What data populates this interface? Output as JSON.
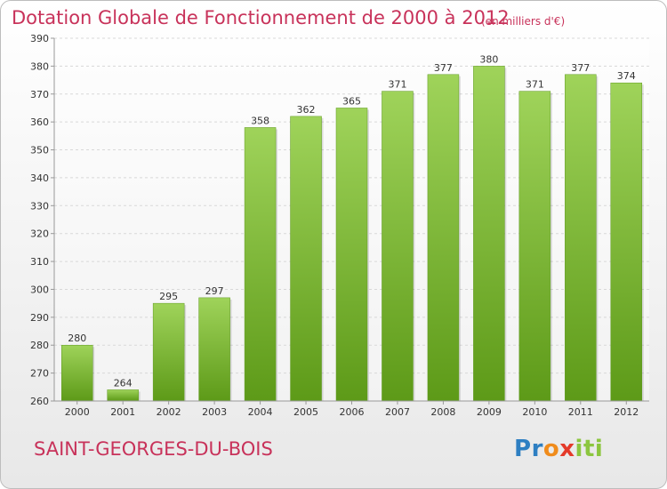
{
  "chart_data": {
    "type": "bar",
    "title": "Dotation Globale de Fonctionnement de 2000 à 2012",
    "subtitle": "(en milliers d'€)",
    "categories": [
      "2000",
      "2001",
      "2002",
      "2003",
      "2004",
      "2005",
      "2006",
      "2007",
      "2008",
      "2009",
      "2010",
      "2011",
      "2012"
    ],
    "values": [
      280,
      264,
      295,
      297,
      358,
      362,
      365,
      371,
      377,
      380,
      371,
      377,
      374
    ],
    "ylim": [
      260,
      390
    ],
    "yticks": [
      260,
      270,
      280,
      290,
      300,
      310,
      320,
      330,
      340,
      350,
      360,
      370,
      380,
      390
    ],
    "grid": true,
    "bar_color": "#7cb82f",
    "xlabel": "",
    "ylabel": ""
  },
  "footer": {
    "commune": "SAINT-GEORGES-DU-BOIS",
    "logo_letters": [
      {
        "ch": "P",
        "color": "#2e7fc2"
      },
      {
        "ch": "r",
        "color": "#2e7fc2"
      },
      {
        "ch": "o",
        "color": "#f08c1c"
      },
      {
        "ch": "x",
        "color": "#e43a2a"
      },
      {
        "ch": "i",
        "color": "#8cc63f"
      },
      {
        "ch": "t",
        "color": "#8cc63f"
      },
      {
        "ch": "i",
        "color": "#8cc63f"
      }
    ]
  },
  "colors": {
    "title": "#c8325a",
    "grid": "#d8d8d8",
    "axis": "#999999"
  }
}
